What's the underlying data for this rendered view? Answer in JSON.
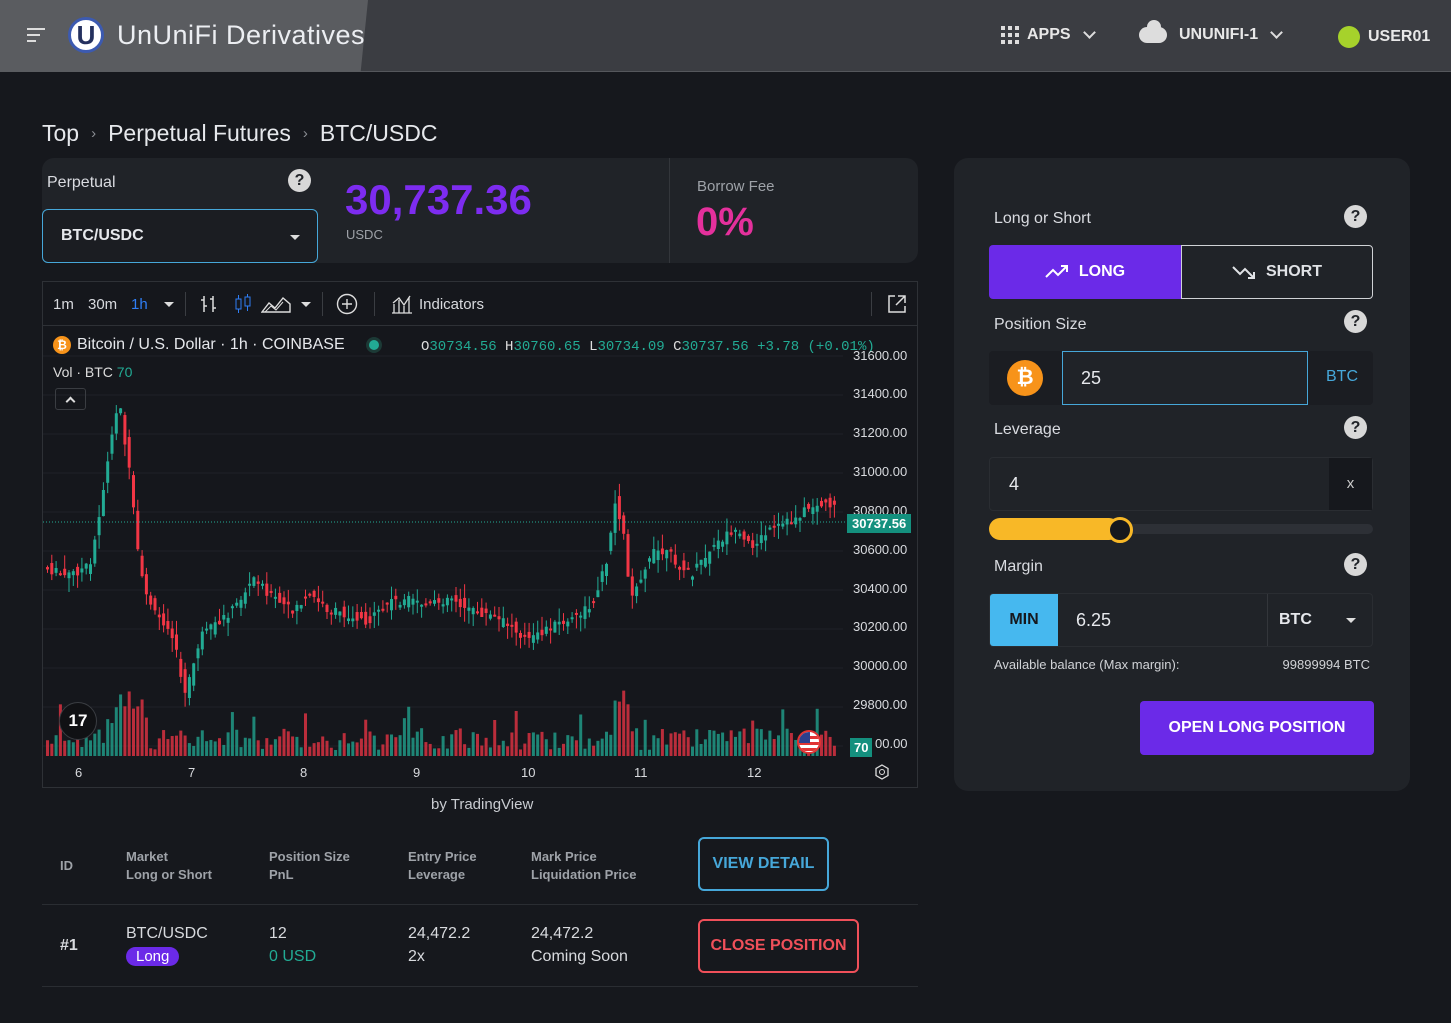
{
  "header": {
    "brand": "UnUniFi Derivatives",
    "logo_letter": "U",
    "apps_label": "APPS",
    "network_label": "UNUNIFI-1",
    "user_label": "USER01"
  },
  "breadcrumb": [
    "Top",
    "Perpetual Futures",
    "BTC/USDC"
  ],
  "perpetual": {
    "label": "Perpetual",
    "help": "?",
    "selected": "BTC/USDC",
    "price": "30,737.36",
    "price_unit": "USDC",
    "borrow_fee_label": "Borrow Fee",
    "borrow_fee": "0%"
  },
  "chart": {
    "toolbar": {
      "tf1": "1m",
      "tf2": "30m",
      "tf3": "1h",
      "indicators": "Indicators"
    },
    "legend_symbol": "Bitcoin / U.S. Dollar · 1h · COINBASE",
    "btc_glyph": "₿",
    "ohlc": {
      "o_label": "O",
      "o": "30734.56",
      "h_label": "H",
      "h": "30760.65",
      "l_label": "L",
      "l": "30734.09",
      "c_label": "C",
      "c": "30737.56",
      "chg": "+3.78 (+0.01%)"
    },
    "vol_label": "Vol · BTC",
    "vol_value": "70",
    "y_ticks": [
      "31600.00",
      "31400.00",
      "31200.00",
      "31000.00",
      "30800.00",
      "30600.00",
      "30400.00",
      "30200.00",
      "30000.00",
      "29800.00",
      "29600.00"
    ],
    "y_tick_last_visible": "00.00",
    "x_ticks": [
      "6",
      "7",
      "8",
      "9",
      "10",
      "11",
      "12"
    ],
    "last_price_tag": "30737.56",
    "vol_tag": "70",
    "tv_logo": "17",
    "by": "by TradingView"
  },
  "positions": {
    "headers": {
      "id": "ID",
      "market": "Market",
      "long_short": "Long or Short",
      "size": "Position Size",
      "pnl": "PnL",
      "entry": "Entry Price",
      "leverage": "Leverage",
      "mark": "Mark Price",
      "liq": "Liquidation Price"
    },
    "view_detail": "VIEW DETAIL",
    "rows": [
      {
        "id": "#1",
        "market": "BTC/USDC",
        "side": "Long",
        "size": "12",
        "pnl": "0 USD",
        "entry": "24,472.2",
        "leverage": "2x",
        "mark": "24,472.2",
        "liq": "Coming Soon",
        "close": "CLOSE POSITION"
      }
    ]
  },
  "order": {
    "long_short_label": "Long or Short",
    "long": "LONG",
    "short": "SHORT",
    "size_label": "Position Size",
    "size_value": "25",
    "size_unit": "BTC",
    "leverage_label": "Leverage",
    "leverage_value": "4",
    "leverage_unit": "x",
    "leverage_fraction": 0.34,
    "margin_label": "Margin",
    "min": "MIN",
    "margin_value": "6.25",
    "margin_unit": "BTC",
    "balance_label": "Available balance (Max margin):",
    "balance_value": "99899994 BTC",
    "submit": "OPEN LONG POSITION"
  },
  "colors": {
    "accent": "#6b2ae8",
    "price": "#7d2cf0",
    "fee": "#e4309c",
    "up": "#22ab94",
    "down": "#f23645",
    "slider": "#f8b827",
    "info": "#46a7d9"
  }
}
